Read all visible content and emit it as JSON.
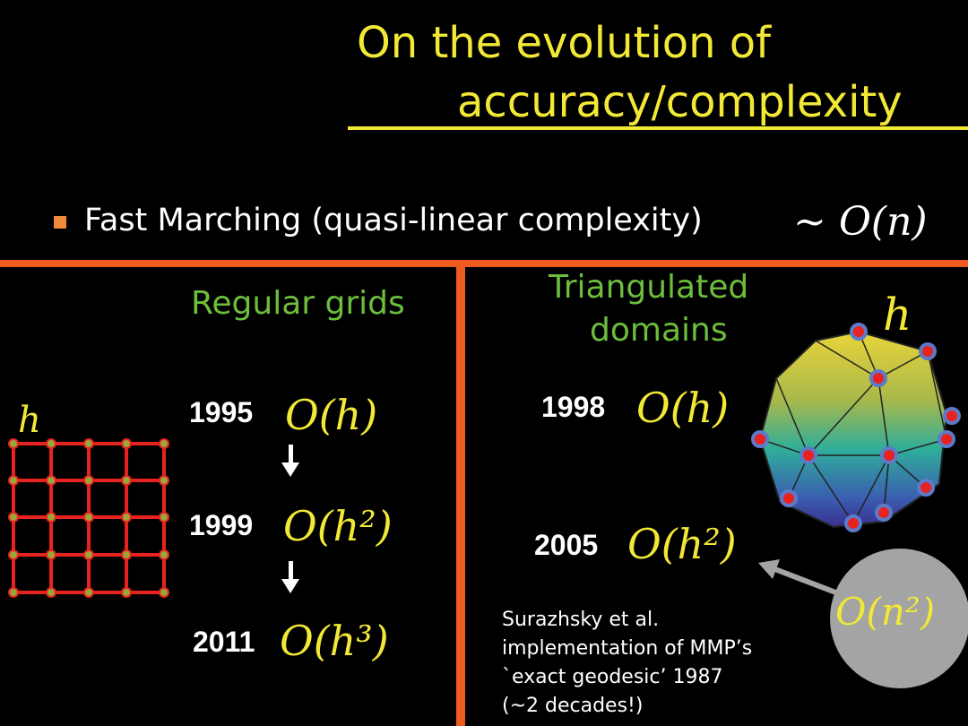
{
  "slide": {
    "title_line1": "On the evolution of",
    "title_line2": "accuracy/complexity",
    "bullet": {
      "text": "Fast Marching (quasi-linear complexity)",
      "math": "∼ O(n)"
    }
  },
  "left_panel": {
    "heading": "Regular grids",
    "grid_label": "h",
    "entries": [
      {
        "year": "1995",
        "order": "O(h)"
      },
      {
        "year": "1999",
        "order": "O(h²)"
      },
      {
        "year": "2011",
        "order": "O(h³)"
      }
    ]
  },
  "right_panel": {
    "heading_line1": "Triangulated",
    "heading_line2": "domains",
    "mesh_label": "h",
    "entries": [
      {
        "year": "1998",
        "order": "O(h)"
      },
      {
        "year": "2005",
        "order": "O(h²)"
      }
    ],
    "complexity_badge": "O(n²)",
    "caption_line1": "Surazhsky et al.",
    "caption_line2": "implementation of MMP’s",
    "caption_line3": "`exact geodesic’ 1987",
    "caption_line4": "(~2 decades!)"
  },
  "colors": {
    "title": "#f2e836",
    "accent_orange": "#ef5a1f",
    "heading_green": "#6cbf3c",
    "grid_red": "#e8221f",
    "node_fill": "#9aa63a",
    "badge_gray": "#a4a4a4"
  }
}
